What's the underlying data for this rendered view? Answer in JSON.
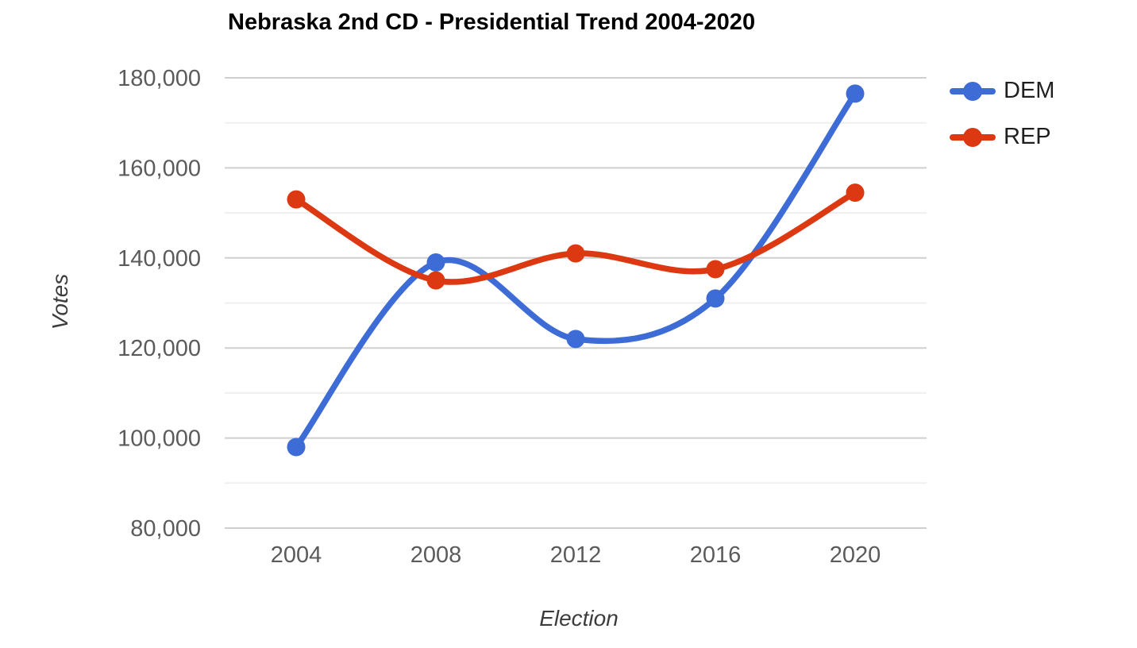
{
  "chart_data": {
    "type": "line",
    "curve": "smooth",
    "title": "Nebraska 2nd CD - Presidential Trend 2004-2020",
    "xlabel": "Election",
    "ylabel": "Votes",
    "categories": [
      "2004",
      "2008",
      "2012",
      "2016",
      "2020"
    ],
    "series": [
      {
        "name": "DEM",
        "color": "#3d6cd6",
        "values": [
          98000,
          139000,
          122000,
          131000,
          176500
        ]
      },
      {
        "name": "REP",
        "color": "#dc3912",
        "values": [
          153000,
          135000,
          141000,
          137500,
          154500
        ]
      }
    ],
    "ylim": [
      80000,
      180000
    ],
    "yticks": [
      {
        "value": 80000,
        "label": "80,000"
      },
      {
        "value": 100000,
        "label": "100,000"
      },
      {
        "value": 120000,
        "label": "120,000"
      },
      {
        "value": 140000,
        "label": "140,000"
      },
      {
        "value": 160000,
        "label": "160,000"
      },
      {
        "value": 180000,
        "label": "180,000"
      }
    ],
    "minor_gridlines": [
      90000,
      110000,
      130000,
      150000,
      170000
    ],
    "grid": {
      "show": true,
      "major_color": "#cfcfcf",
      "minor_color": "#efefef"
    },
    "legend_position": "right-top",
    "colors": {
      "title_text": "#000000",
      "tick_label": "#5b5b5b",
      "axis_title": "#3c3c3c",
      "legend_text": "#1f1f1f",
      "background": "#ffffff"
    }
  }
}
